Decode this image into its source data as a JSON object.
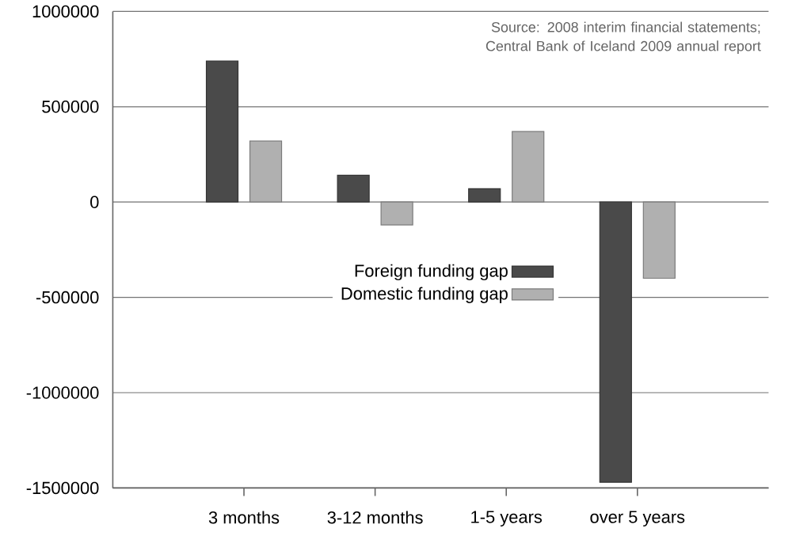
{
  "chart_data": {
    "type": "bar",
    "categories": [
      "3 months",
      "3-12 months",
      "1-5 years",
      "over 5 years"
    ],
    "series": [
      {
        "name": "Foreign funding gap",
        "color": "#4a4a4a",
        "values": [
          740000,
          140000,
          70000,
          -1470000
        ]
      },
      {
        "name": "Domestic funding gap",
        "color": "#b0b0b0",
        "values": [
          320000,
          -120000,
          370000,
          -400000
        ]
      }
    ],
    "ylim": [
      -1500000,
      1000000
    ],
    "yticks": [
      -1500000,
      -1000000,
      -500000,
      0,
      500000,
      1000000
    ],
    "grid": "y",
    "legend": "right",
    "annotations": [
      "Source: 2008 interim financial statements; Central Bank of Iceland 2009 annual report"
    ]
  }
}
